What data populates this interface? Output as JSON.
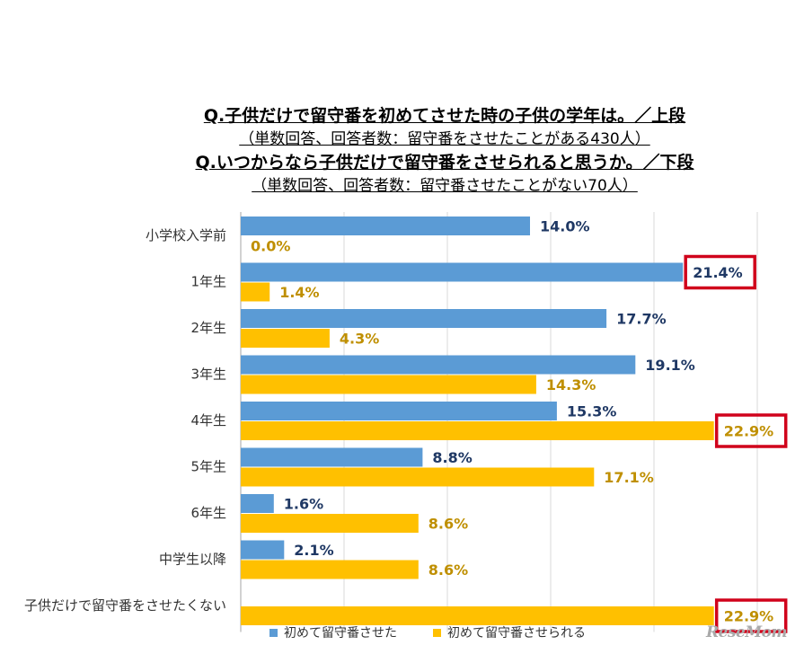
{
  "title": {
    "q1": "Q.子供だけで留守番を初めてさせた時の子供の学年は。／上段",
    "q1_sub": "（単数回答、回答者数：留守番をさせたことがある430人）",
    "q2": "Q.いつからなら子供だけで留守番をさせられると思うか。／下段",
    "q2_sub": "（単数回答、回答者数：留守番させたことがない70人）"
  },
  "legend": {
    "item1": "初めて留守番させた",
    "item2": "初めて留守番させられる"
  },
  "watermark": "ReseMom",
  "colors": {
    "series1": "#5b9bd5",
    "series2": "#ffc000",
    "label1": "#1f3864",
    "label2": "#bf8f00",
    "highlight": "#d0021b",
    "grid": "#d9d9d9"
  },
  "chart_data": {
    "type": "bar",
    "orientation": "horizontal",
    "categories": [
      "小学校入学前",
      "1年生",
      "2年生",
      "3年生",
      "4年生",
      "5年生",
      "6年生",
      "中学生以降",
      "子供だけで留守番をさせたくない"
    ],
    "series": [
      {
        "name": "初めて留守番させた",
        "values": [
          14.0,
          21.4,
          17.7,
          19.1,
          15.3,
          8.8,
          1.6,
          2.1,
          null
        ],
        "labels": [
          "14.0%",
          "21.4%",
          "17.7%",
          "19.1%",
          "15.3%",
          "8.8%",
          "1.6%",
          "2.1%",
          ""
        ]
      },
      {
        "name": "初めて留守番させられる",
        "values": [
          0.0,
          1.4,
          4.3,
          14.3,
          22.9,
          17.1,
          8.6,
          8.6,
          22.9
        ],
        "labels": [
          "0.0%",
          "1.4%",
          "4.3%",
          "14.3%",
          "22.9%",
          "17.1%",
          "8.6%",
          "8.6%",
          "22.9%"
        ]
      }
    ],
    "highlighted": [
      {
        "series": 0,
        "category": 1
      },
      {
        "series": 1,
        "category": 4
      },
      {
        "series": 1,
        "category": 8
      }
    ],
    "xlim": [
      0,
      25
    ],
    "grid": true,
    "legend_position": "bottom"
  }
}
